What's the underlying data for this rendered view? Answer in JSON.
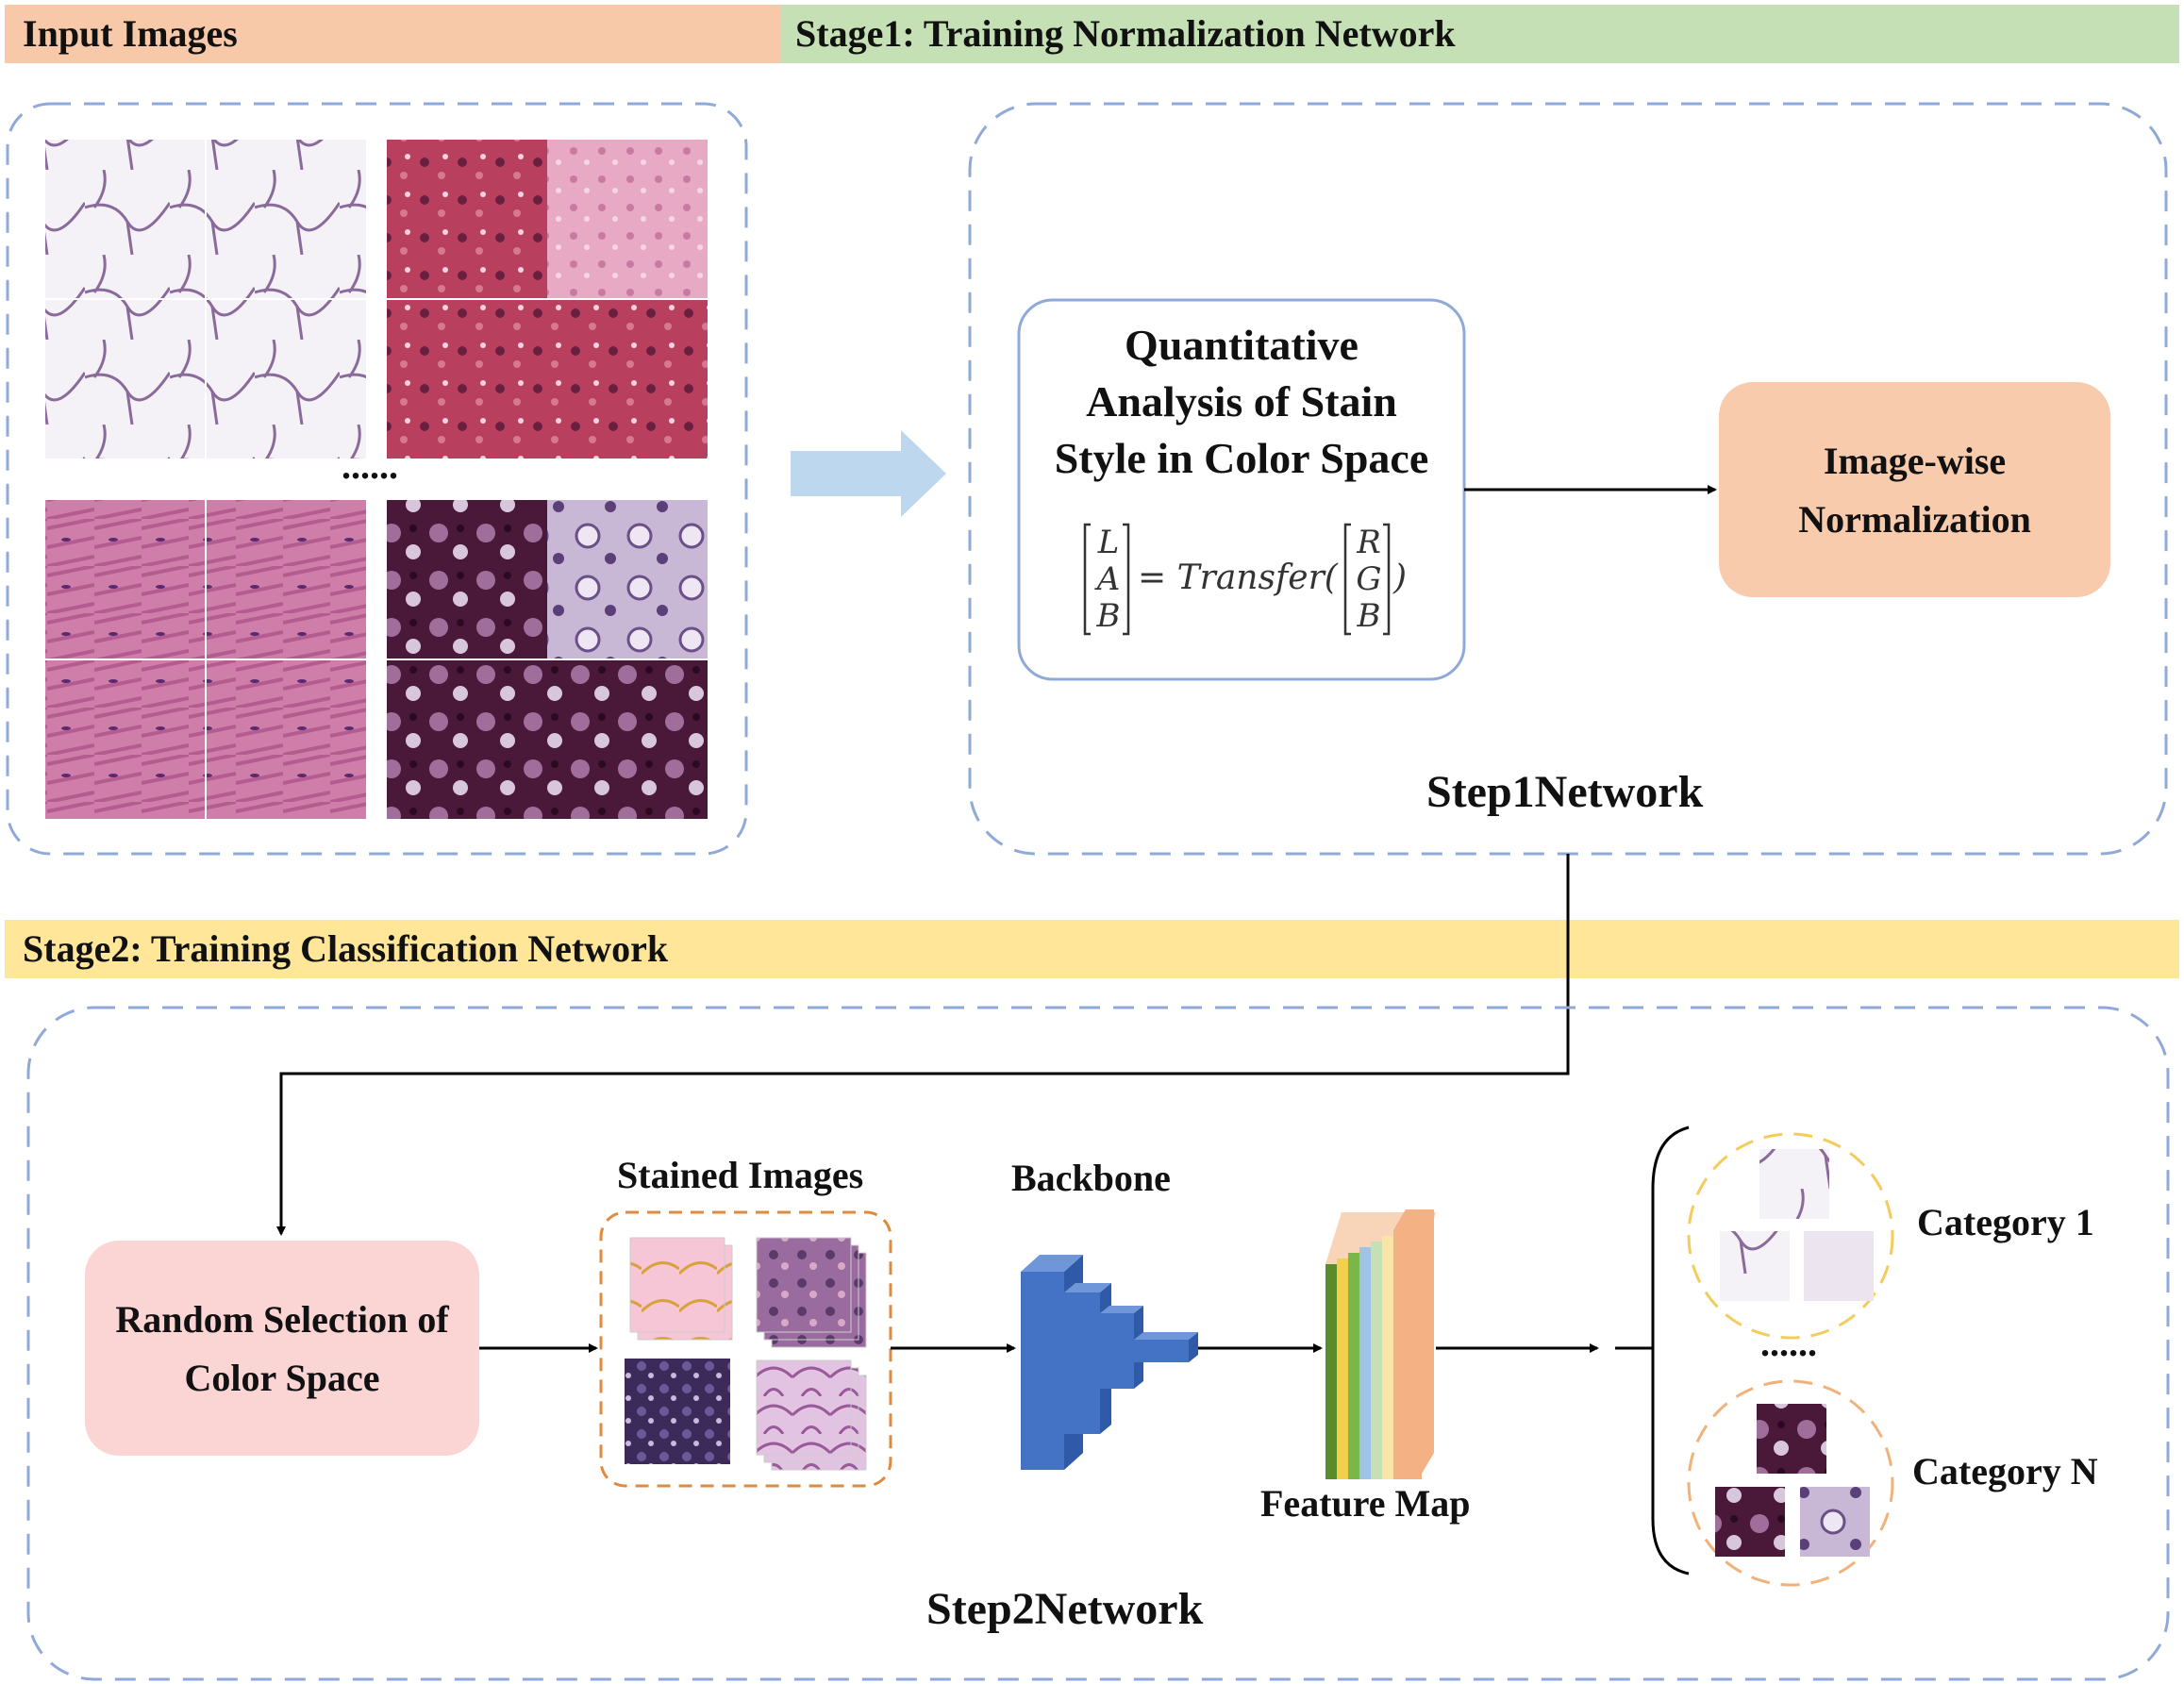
{
  "bands": {
    "input_images": "Input Images",
    "stage1": "Stage1: Training Normalization Network",
    "stage2": "Stage2: Training Classification Network"
  },
  "input_panel": {
    "ellipsis": "......"
  },
  "step1": {
    "quant_lines": [
      "Quantitative",
      "Analysis of Stain",
      "Style in Color Space"
    ],
    "formula": {
      "lhs": [
        "L",
        "A",
        "B"
      ],
      "fn": "= Transfer(",
      "rhs": [
        "R",
        "G",
        "B"
      ],
      "close": ")"
    },
    "normalization_lines": [
      "Image-wise",
      "Normalization"
    ],
    "network_label": "Step1Network"
  },
  "step2": {
    "random_selection_lines": [
      "Random Selection of",
      "Color Space"
    ],
    "stained_images_label": "Stained Images",
    "backbone_label": "Backbone",
    "feature_map_label": "Feature Map",
    "category_1": "Category 1",
    "category_ellipsis": "......",
    "category_n": "Category N",
    "network_label": "Step2Network"
  },
  "colors": {
    "input_band": "#f7c9a8",
    "stage1_band": "#c5e0b4",
    "stage2_band": "#ffe699",
    "dashed_border": "#8fa9d8",
    "quant_border": "#8fa9d8",
    "normalization_fill": "#f8cbad",
    "random_fill": "#fbd4d4",
    "stained_border": "#e08a3c",
    "backbone_blue": "#4472c4",
    "arrow_light_blue": "#bdd7ee",
    "category1_ring": "#f4cc5b",
    "categoryN_ring": "#f0b27a",
    "feature_map_layers": [
      "#5b8c2a",
      "#f2d04b",
      "#7ab648",
      "#9dc3e6",
      "#c5e0b4",
      "#fbe5a6",
      "#f4b183"
    ]
  },
  "icons": [
    "right-arrow-icon",
    "big-right-arrow-icon",
    "brace-icon"
  ]
}
